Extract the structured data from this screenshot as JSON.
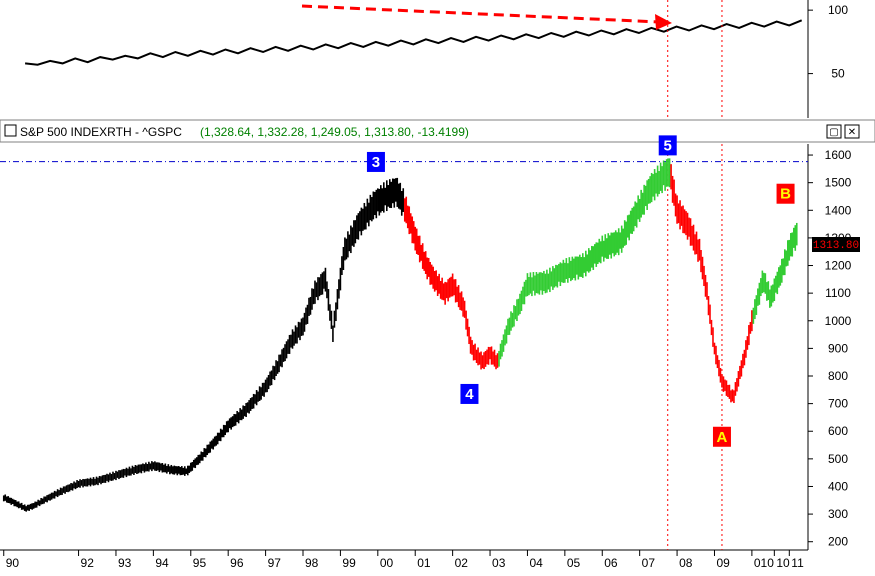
{
  "window": {
    "title": "S&P 500 INDEXRTH - ^GSPC",
    "ohlc_text": "(1,328.64, 1,332.28, 1,249.05, 1,313.80, -13.4199)",
    "last_price_label": "1313.80",
    "buttons": {
      "restore": "▢",
      "close": "✕"
    }
  },
  "colors": {
    "background": "#ffffff",
    "bull_phase": "#000000",
    "decline_phase": "#ff0000",
    "rally_phase": "#33cc33",
    "label_blue": "#0000ff",
    "label_red": "#ff0000",
    "label_yellow": "#ffff00",
    "resistance_line": "#0000cc",
    "dashed_arrow": "#ff0000",
    "vline": "#ff0000",
    "ohlc_text_color": "#008000",
    "last_price_bg": "#000000",
    "last_price_text": "#ff0000",
    "indicator_black": "#000000",
    "indicator_red": "#ff3333",
    "indicator_blue": "#3333ff"
  },
  "chart_data": [
    {
      "type": "line",
      "role": "upper-indicator",
      "y_ticks": [
        100,
        50
      ],
      "ylim": [
        15,
        108
      ],
      "xlim": [
        1998.3,
        2011.2
      ],
      "series": [
        {
          "color_key": "indicator_black",
          "x": [
            1998.7,
            1998.9,
            1999.1,
            1999.3,
            1999.5,
            1999.7,
            1999.9,
            2000.1,
            2000.3,
            2000.5,
            2000.7,
            2000.9,
            2001.1,
            2001.3,
            2001.5,
            2001.7,
            2001.9,
            2002.1,
            2002.3,
            2002.5,
            2002.7,
            2002.9,
            2003.1,
            2003.3,
            2003.5,
            2003.7,
            2003.9,
            2004.1,
            2004.3,
            2004.5,
            2004.7,
            2004.9,
            2005.1,
            2005.3,
            2005.5,
            2005.7,
            2005.9,
            2006.1,
            2006.3,
            2006.5,
            2006.7,
            2006.9,
            2007.1,
            2007.3,
            2007.5,
            2007.7,
            2007.9,
            2008.1,
            2008.3,
            2008.5,
            2008.7,
            2008.9,
            2009.1,
            2009.3,
            2009.5,
            2009.7,
            2009.9,
            2010.1,
            2010.3,
            2010.5,
            2010.7,
            2010.9,
            2011.1
          ],
          "y": [
            58,
            57,
            60,
            58,
            62,
            59,
            63,
            61,
            64,
            62,
            66,
            63,
            67,
            64,
            68,
            65,
            69,
            66,
            70,
            67,
            71,
            68,
            72,
            69,
            73,
            70,
            74,
            71,
            75,
            72,
            76,
            73,
            77,
            74,
            78,
            75,
            79,
            76,
            80,
            77,
            81,
            78,
            82,
            79,
            83,
            80,
            84,
            81,
            85,
            82,
            86,
            83,
            87,
            84,
            88,
            85,
            89,
            86,
            90,
            87,
            91,
            88,
            92
          ]
        }
      ]
    },
    {
      "type": "bar",
      "role": "main-price",
      "title": "S&P 500 INDEXRTH - ^GSPC",
      "y_ticks": [
        200,
        300,
        400,
        500,
        600,
        700,
        800,
        900,
        1000,
        1100,
        1200,
        1300,
        1400,
        1500,
        1600
      ],
      "ylim": [
        170,
        1640
      ],
      "x_tick_labels": [
        "90",
        "92",
        "93",
        "94",
        "95",
        "96",
        "97",
        "98",
        "99",
        "00",
        "01",
        "02",
        "03",
        "04",
        "05",
        "06",
        "07",
        "08",
        "09",
        "010",
        "10",
        "11"
      ],
      "x_tick_positions": [
        1990,
        1992,
        1993,
        1994,
        1995,
        1996,
        1997,
        1998,
        1999,
        2000,
        2001,
        2002,
        2003,
        2004,
        2005,
        2006,
        2007,
        2008,
        2009,
        2010,
        2010.6,
        2011
      ],
      "xlim": [
        1989.9,
        2011.5
      ],
      "resistance": 1576,
      "phases": [
        {
          "color_key": "bull_phase",
          "from": 1990.0,
          "to": 2000.7
        },
        {
          "color_key": "decline_phase",
          "from": 2000.7,
          "to": 2003.2
        },
        {
          "color_key": "rally_phase",
          "from": 2003.2,
          "to": 2007.8
        },
        {
          "color_key": "decline_phase",
          "from": 2007.8,
          "to": 2010.0
        },
        {
          "color_key": "rally_phase",
          "from": 2010.0,
          "to": 2011.2
        }
      ],
      "path": {
        "x": [
          1990.0,
          1990.3,
          1990.6,
          1990.8,
          1991.0,
          1991.5,
          1992.0,
          1992.5,
          1993.0,
          1993.5,
          1994.0,
          1994.5,
          1994.9,
          1995.3,
          1995.7,
          1996.0,
          1996.5,
          1997.0,
          1997.3,
          1997.7,
          1998.0,
          1998.3,
          1998.6,
          1998.8,
          1999.1,
          1999.5,
          1999.9,
          2000.2,
          2000.5,
          2000.7,
          2001.0,
          2001.3,
          2001.5,
          2001.8,
          2002.0,
          2002.3,
          2002.5,
          2002.8,
          2003.0,
          2003.2,
          2003.5,
          2003.8,
          2004.0,
          2004.5,
          2005.0,
          2005.5,
          2006.0,
          2006.5,
          2007.0,
          2007.3,
          2007.6,
          2007.8,
          2008.0,
          2008.3,
          2008.6,
          2008.8,
          2009.0,
          2009.2,
          2009.5,
          2009.8,
          2010.0,
          2010.3,
          2010.5,
          2010.8,
          2011.0,
          2011.2
        ],
        "y": [
          360,
          340,
          320,
          330,
          345,
          380,
          410,
          420,
          440,
          460,
          475,
          460,
          455,
          510,
          570,
          620,
          680,
          760,
          830,
          930,
          980,
          1100,
          1150,
          960,
          1250,
          1350,
          1420,
          1450,
          1470,
          1420,
          1300,
          1200,
          1150,
          1100,
          1130,
          1050,
          900,
          850,
          880,
          850,
          980,
          1060,
          1130,
          1140,
          1180,
          1200,
          1260,
          1290,
          1410,
          1480,
          1520,
          1540,
          1400,
          1340,
          1250,
          1100,
          900,
          780,
          720,
          870,
          1000,
          1150,
          1080,
          1180,
          1260,
          1313
        ]
      },
      "labels": [
        {
          "text": "3",
          "x": 1999.95,
          "y": 1575,
          "bg_key": "label_blue",
          "fg": "#ffffff"
        },
        {
          "text": "4",
          "x": 2002.45,
          "y": 735,
          "bg_key": "label_blue",
          "fg": "#ffffff"
        },
        {
          "text": "5",
          "x": 2007.75,
          "y": 1635,
          "bg_key": "label_blue",
          "fg": "#ffffff"
        },
        {
          "text": "A",
          "x": 2009.2,
          "y": 580,
          "bg_key": "label_red",
          "fg": "#ffff00"
        },
        {
          "text": "B",
          "x": 2010.9,
          "y": 1460,
          "bg_key": "label_red",
          "fg": "#ffff00"
        }
      ],
      "vertical_markers": [
        2007.75,
        2009.2
      ]
    }
  ]
}
